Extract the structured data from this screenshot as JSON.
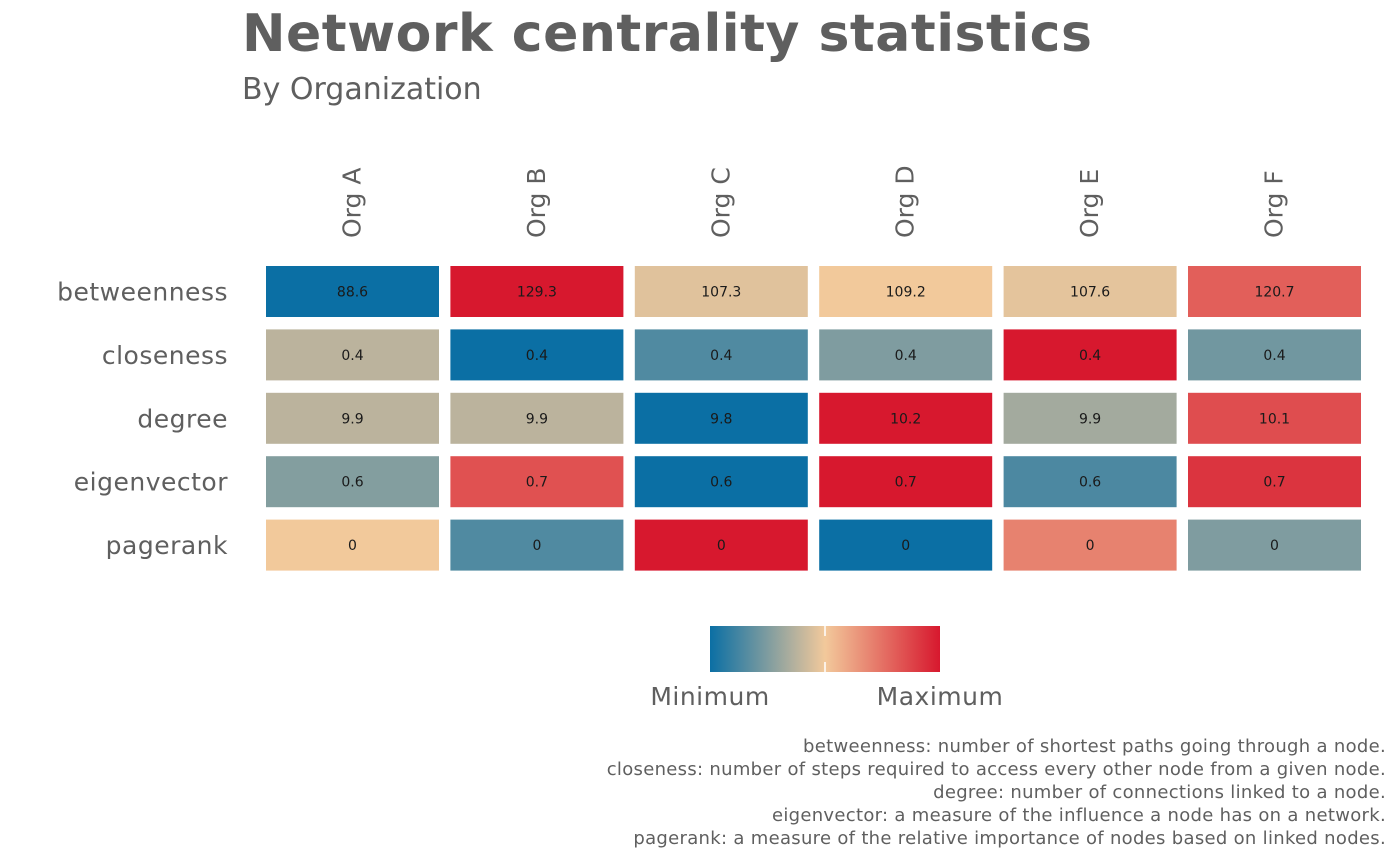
{
  "chart_data": {
    "type": "heatmap",
    "title": "Network centrality statistics",
    "subtitle": "By Organization",
    "columns": [
      "Org A",
      "Org B",
      "Org C",
      "Org D",
      "Org E",
      "Org F"
    ],
    "rows": [
      "betweenness",
      "closeness",
      "degree",
      "eigenvector",
      "pagerank"
    ],
    "values": [
      [
        "88.6",
        "129.3",
        "107.3",
        "109.2",
        "107.6",
        "120.7"
      ],
      [
        "0.4",
        "0.4",
        "0.4",
        "0.4",
        "0.4",
        "0.4"
      ],
      [
        "9.9",
        "9.9",
        "9.8",
        "10.2",
        "9.9",
        "10.1"
      ],
      [
        "0.6",
        "0.7",
        "0.6",
        "0.7",
        "0.6",
        "0.7"
      ],
      [
        "0",
        "0",
        "0",
        "0",
        "0",
        "0"
      ]
    ],
    "scaled": [
      [
        0.0,
        1.0,
        0.46,
        0.5,
        0.47,
        0.8
      ],
      [
        0.38,
        0.0,
        0.15,
        0.25,
        1.0,
        0.22
      ],
      [
        0.38,
        0.38,
        0.0,
        1.0,
        0.33,
        0.85
      ],
      [
        0.26,
        0.84,
        0.0,
        1.0,
        0.14,
        0.92
      ],
      [
        0.5,
        0.15,
        1.0,
        0.0,
        0.7,
        0.25
      ]
    ],
    "legend": {
      "min_label": "Minimum",
      "max_label": "Maximum",
      "colors": [
        "#0b6fa4",
        "#f2c99b",
        "#d7182e"
      ]
    },
    "caption": [
      "betweenness: number of shortest paths going through a node.",
      "closeness: number of steps required to access every other node from a given node.",
      "degree: number of connections linked to a node.",
      "eigenvector: a measure of the influence a node has on a network.",
      "pagerank: a measure of the relative importance of nodes based on linked nodes."
    ]
  }
}
